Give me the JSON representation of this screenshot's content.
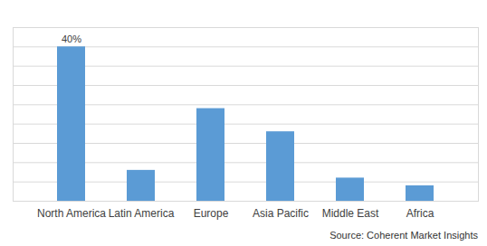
{
  "chart_data": {
    "type": "bar",
    "categories": [
      "North America",
      "Latin America",
      "Europe",
      "Asia Pacific",
      "Middle East",
      "Africa"
    ],
    "values": [
      40,
      8,
      24,
      18,
      6,
      4
    ],
    "value_labels": [
      "40%",
      null,
      null,
      null,
      null,
      null
    ],
    "data_labels": true,
    "color": "#5b9bd5",
    "ylim": [
      0,
      45
    ],
    "yticks": [
      0,
      5,
      10,
      15,
      20,
      25,
      30,
      35,
      40
    ],
    "grid": true,
    "tick_labels": "x",
    "source": "Source: Coherent Market Insights"
  }
}
